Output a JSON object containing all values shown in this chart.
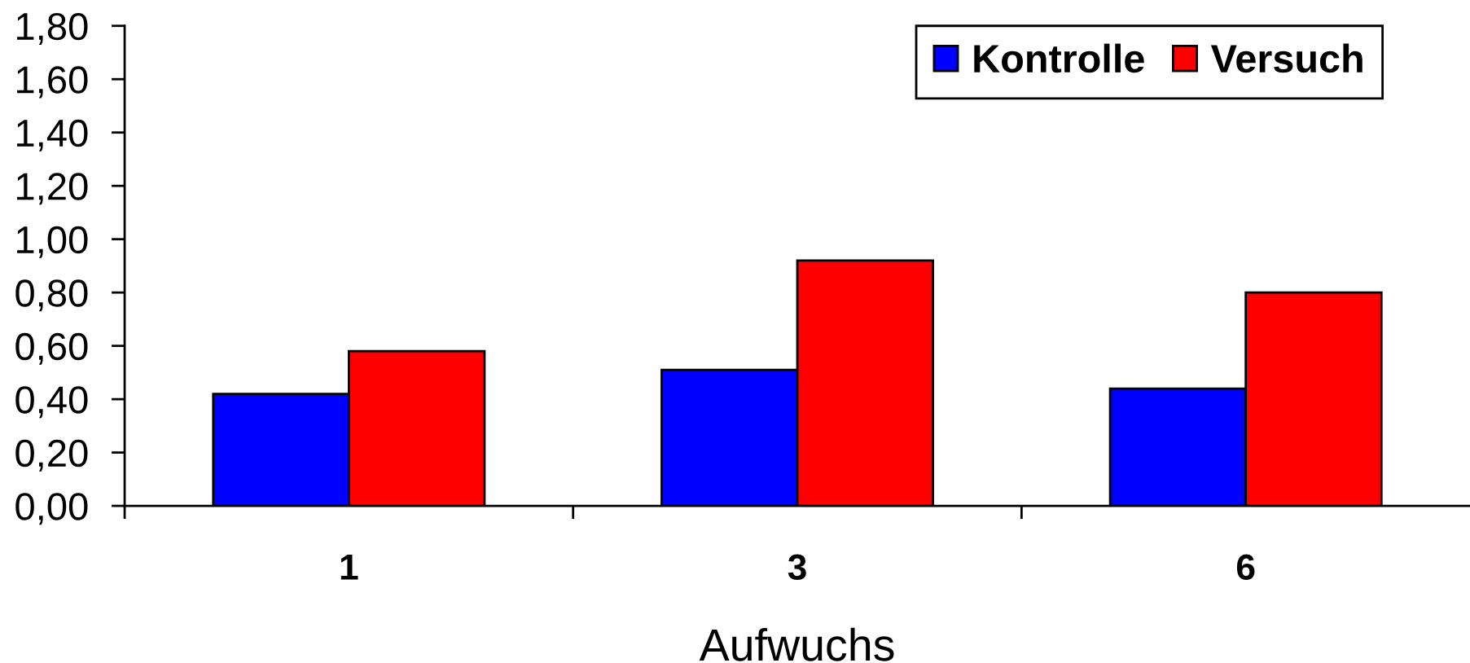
{
  "chart_data": {
    "type": "bar",
    "xlabel": "Aufwuchs",
    "categories": [
      "1",
      "3",
      "6"
    ],
    "series": [
      {
        "name": "Kontrolle",
        "color": "#0000ff",
        "values": [
          0.42,
          0.51,
          0.44
        ]
      },
      {
        "name": "Versuch",
        "color": "#ff0000",
        "values": [
          0.58,
          0.92,
          0.8
        ]
      }
    ],
    "ylim": [
      0,
      1.8
    ],
    "yticks": [
      {
        "value": 0,
        "label": "0,00"
      },
      {
        "value": 0.2,
        "label": "0,20"
      },
      {
        "value": 0.4,
        "label": "0,40"
      },
      {
        "value": 0.6,
        "label": "0,60"
      },
      {
        "value": 0.8,
        "label": "0,80"
      },
      {
        "value": 1.0,
        "label": "1,00"
      },
      {
        "value": 1.2,
        "label": "1,20"
      },
      {
        "value": 1.4,
        "label": "1,40"
      },
      {
        "value": 1.6,
        "label": "1,60"
      },
      {
        "value": 1.8,
        "label": "1,80"
      }
    ],
    "legend": "top right",
    "grid": false
  }
}
